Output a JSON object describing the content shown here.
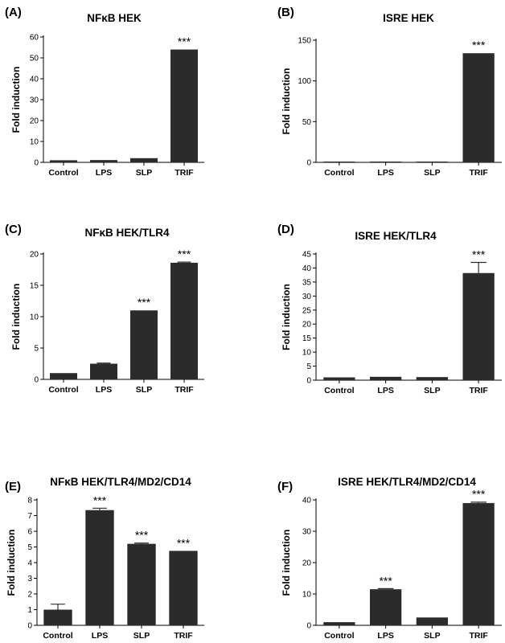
{
  "chart_data": [
    {
      "panel": "(A)",
      "title": "NFκB HEK",
      "type": "bar",
      "ylabel": "Fold induction",
      "categories": [
        "Control",
        "LPS",
        "SLP",
        "TRIF"
      ],
      "values": [
        1.0,
        1.1,
        2.0,
        54
      ],
      "errors": [
        0,
        0,
        0,
        0
      ],
      "annotations": [
        "",
        "",
        "",
        "***"
      ],
      "ylim": [
        0,
        60
      ],
      "yticks": [
        0,
        10,
        20,
        30,
        40,
        50,
        60
      ],
      "grid": false,
      "legend": "none"
    },
    {
      "panel": "(B)",
      "title": "ISRE HEK",
      "type": "bar",
      "ylabel": "Fold induction",
      "categories": [
        "Control",
        "LPS",
        "SLP",
        "TRIF"
      ],
      "values": [
        1.0,
        1.0,
        1.0,
        134
      ],
      "errors": [
        0,
        0,
        0,
        0
      ],
      "annotations": [
        "",
        "",
        "",
        "***"
      ],
      "ylim": [
        0,
        150
      ],
      "yticks": [
        0,
        50,
        100,
        150
      ],
      "grid": false,
      "legend": "none"
    },
    {
      "panel": "(C)",
      "title": "NFκB HEK/TLR4",
      "type": "bar",
      "ylabel": "Fold induction",
      "categories": [
        "Control",
        "LPS",
        "SLP",
        "TRIF"
      ],
      "values": [
        1.0,
        2.5,
        11.0,
        18.6
      ],
      "errors": [
        0,
        0.1,
        0,
        0.1
      ],
      "annotations": [
        "",
        "",
        "***",
        "***"
      ],
      "ylim": [
        0,
        20
      ],
      "yticks": [
        0,
        5,
        10,
        15,
        20
      ],
      "grid": false,
      "legend": "none"
    },
    {
      "panel": "(D)",
      "title": "ISRE HEK/TLR4",
      "type": "bar",
      "ylabel": "Fold induction",
      "categories": [
        "Control",
        "LPS",
        "SLP",
        "TRIF"
      ],
      "values": [
        1.0,
        1.2,
        1.1,
        38.2
      ],
      "errors": [
        0,
        0,
        0,
        3.8
      ],
      "annotations": [
        "",
        "",
        "",
        "***"
      ],
      "ylim": [
        0,
        45
      ],
      "yticks": [
        0,
        5,
        10,
        15,
        20,
        25,
        30,
        35,
        40,
        45
      ],
      "grid": false,
      "legend": "none"
    },
    {
      "panel": "(E)",
      "title": "NFκB HEK/TLR4/MD2/CD14",
      "type": "bar",
      "ylabel": "Fold induction",
      "categories": [
        "Control",
        "LPS",
        "SLP",
        "TRIF"
      ],
      "values": [
        1.0,
        7.35,
        5.2,
        4.75
      ],
      "errors": [
        0.35,
        0.12,
        0.05,
        0
      ],
      "annotations": [
        "",
        "***",
        "***",
        "***"
      ],
      "ylim": [
        0,
        8
      ],
      "yticks": [
        0,
        1,
        2,
        3,
        4,
        5,
        6,
        7,
        8
      ],
      "grid": false,
      "legend": "none"
    },
    {
      "panel": "(F)",
      "title": "ISRE HEK/TLR4/MD2/CD14",
      "type": "bar",
      "ylabel": "Fold induction",
      "categories": [
        "Control",
        "LPS",
        "SLP",
        "TRIF"
      ],
      "values": [
        1.0,
        11.5,
        2.5,
        39.0
      ],
      "errors": [
        0,
        0.2,
        0,
        0.3
      ],
      "annotations": [
        "",
        "***",
        "",
        "***"
      ],
      "ylim": [
        0,
        40
      ],
      "yticks": [
        0,
        10,
        20,
        30,
        40
      ],
      "grid": false,
      "legend": "none"
    }
  ],
  "colors": {
    "bar": "#2b2b2b",
    "axis": "#000000"
  }
}
